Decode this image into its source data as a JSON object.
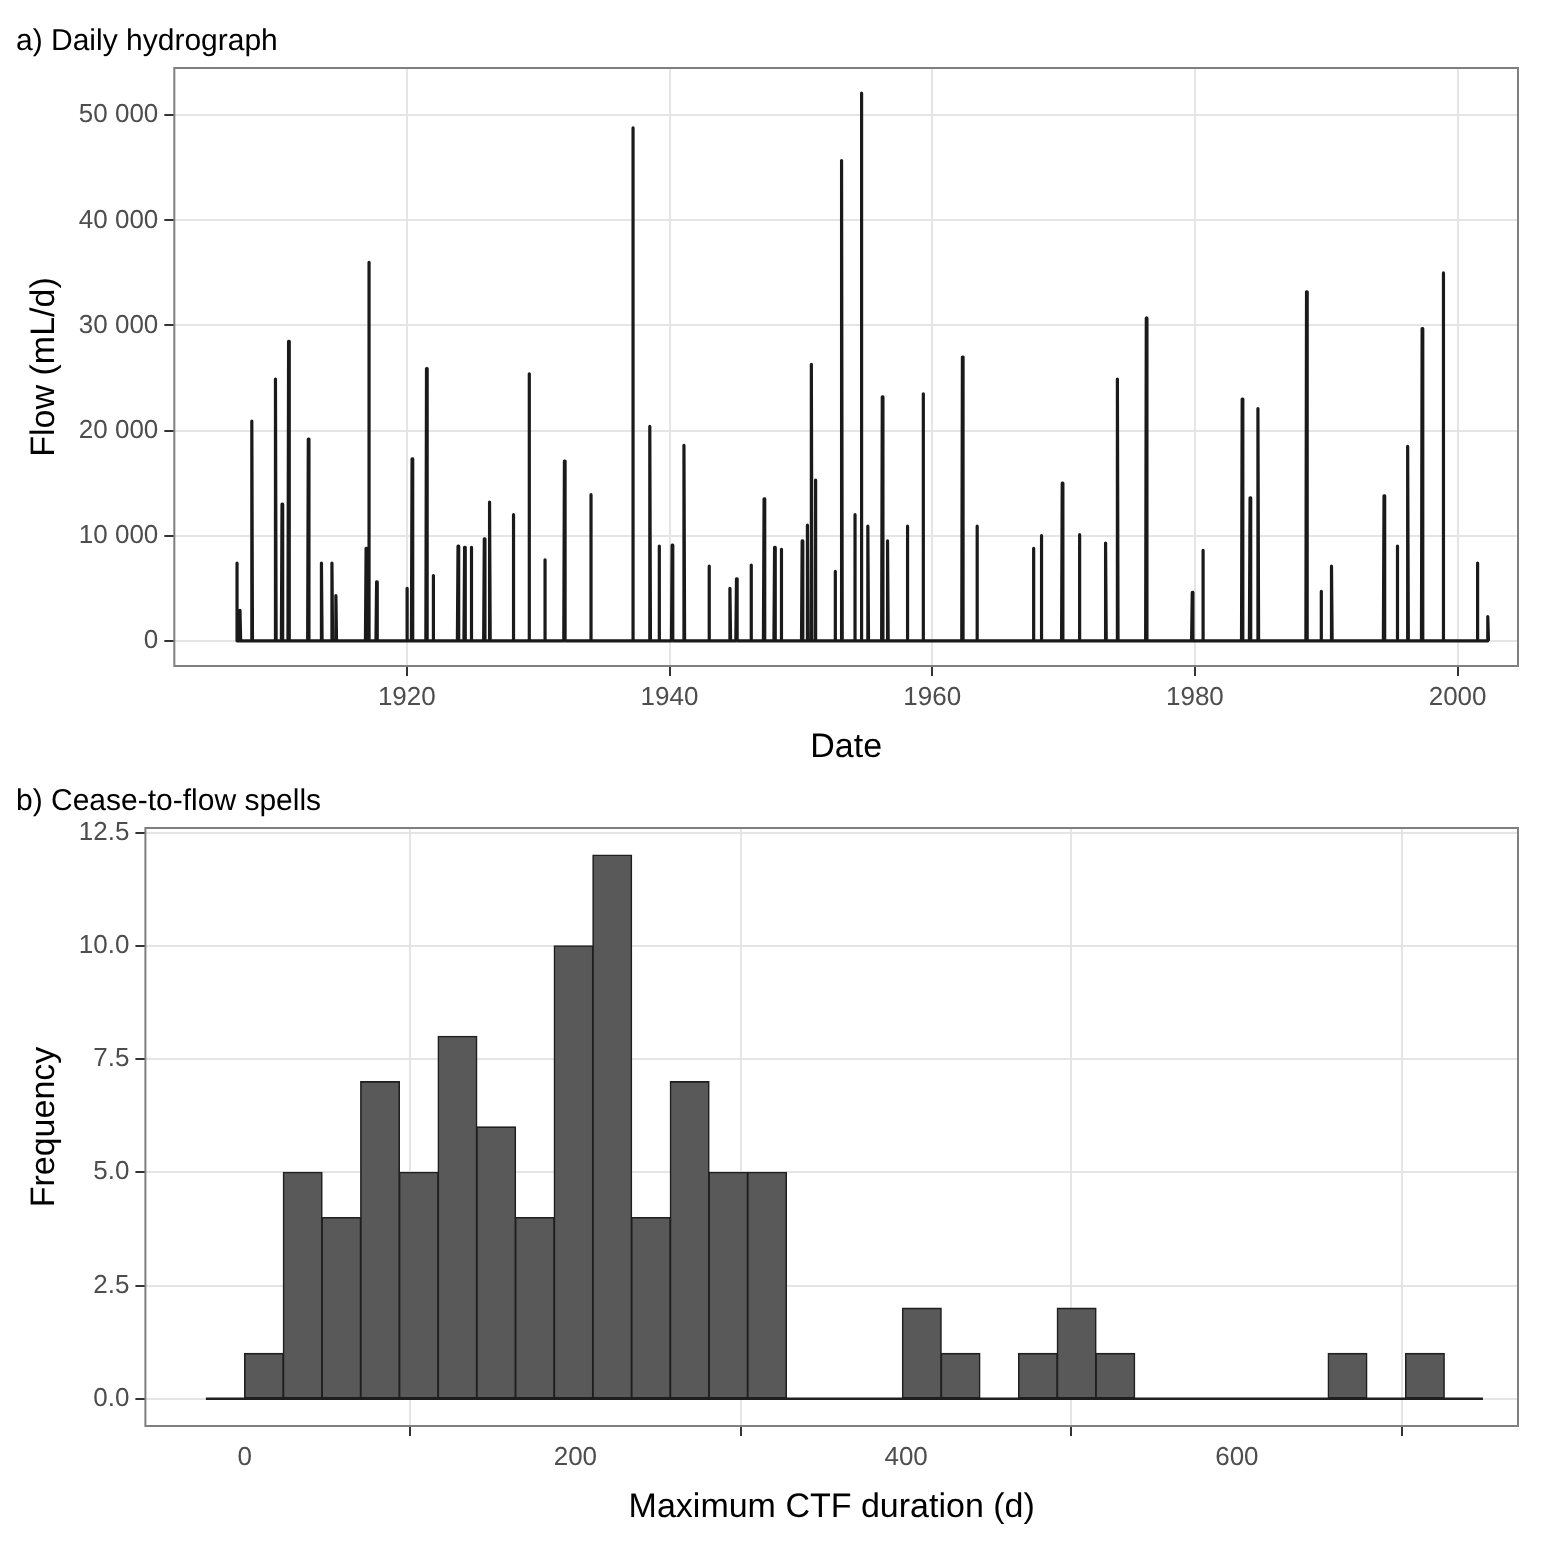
{
  "chart_data": [
    {
      "type": "line",
      "title": "a) Daily hydrograph",
      "xlabel": "Date",
      "ylabel": "Flow (mL/d)",
      "color": "#1a1a1a",
      "grid": true,
      "xlim": [
        1902.3,
        2004.6
      ],
      "xticks": [
        1920,
        1940,
        1960,
        1980,
        2000
      ],
      "ylim": [
        -2400,
        54500
      ],
      "yticks": [
        0,
        {
          "value": 10000,
          "label": "10 000"
        },
        {
          "value": 20000,
          "label": "20 000"
        },
        {
          "value": 30000,
          "label": "30 000"
        },
        {
          "value": 40000,
          "label": "40 000"
        },
        {
          "value": 50000,
          "label": "50 000"
        }
      ],
      "x": [
        1907.0,
        1907.05,
        1907.1,
        1907.25,
        1907.3,
        1907.35,
        1908.15,
        1908.2,
        1908.25,
        1909.95,
        1910.0,
        1910.05,
        1910.45,
        1910.5,
        1910.55,
        1910.95,
        1911.0,
        1911.05,
        1912.45,
        1912.5,
        1912.55,
        1913.45,
        1913.5,
        1913.55,
        1914.25,
        1914.3,
        1914.35,
        1914.55,
        1914.6,
        1914.65,
        1916.85,
        1916.9,
        1916.95,
        1917.05,
        1917.1,
        1917.15,
        1917.65,
        1917.7,
        1917.75,
        1919.95,
        1920.0,
        1920.05,
        1920.35,
        1920.4,
        1920.45,
        1921.45,
        1921.5,
        1921.55,
        1921.95,
        1922.0,
        1922.05,
        1923.85,
        1923.9,
        1923.95,
        1924.35,
        1924.4,
        1924.45,
        1924.85,
        1924.9,
        1924.95,
        1925.85,
        1925.9,
        1925.95,
        1926.25,
        1926.3,
        1926.35,
        1928.05,
        1928.1,
        1928.15,
        1929.25,
        1929.3,
        1929.35,
        1930.45,
        1930.5,
        1930.55,
        1931.95,
        1932.0,
        1932.05,
        1933.95,
        1934.0,
        1934.05,
        1937.15,
        1937.2,
        1937.25,
        1938.45,
        1938.5,
        1938.55,
        1939.15,
        1939.2,
        1939.25,
        1940.15,
        1940.2,
        1940.25,
        1941.05,
        1941.1,
        1941.15,
        1942.95,
        1943.0,
        1943.05,
        1944.55,
        1944.6,
        1944.65,
        1945.05,
        1945.1,
        1945.15,
        1946.15,
        1946.2,
        1946.25,
        1947.15,
        1947.2,
        1947.25,
        1947.95,
        1948.0,
        1948.05,
        1948.45,
        1948.5,
        1948.55,
        1950.05,
        1950.1,
        1950.15,
        1950.45,
        1950.5,
        1950.55,
        1950.75,
        1950.8,
        1950.85,
        1951.05,
        1951.1,
        1951.15,
        1952.55,
        1952.6,
        1952.65,
        1953.05,
        1953.1,
        1953.15,
        1954.05,
        1954.1,
        1954.15,
        1954.55,
        1954.6,
        1954.65,
        1955.05,
        1955.1,
        1955.15,
        1956.15,
        1956.2,
        1956.25,
        1956.55,
        1956.6,
        1956.65,
        1958.05,
        1958.1,
        1958.15,
        1959.25,
        1959.3,
        1959.35,
        1962.25,
        1962.3,
        1962.35,
        1963.35,
        1963.4,
        1963.45,
        1967.65,
        1967.7,
        1967.75,
        1968.25,
        1968.3,
        1968.35,
        1969.85,
        1969.9,
        1969.95,
        1971.15,
        1971.2,
        1971.25,
        1973.15,
        1973.2,
        1973.25,
        1974.05,
        1974.1,
        1974.15,
        1976.25,
        1976.3,
        1976.35,
        1979.75,
        1979.8,
        1979.85,
        1980.55,
        1980.6,
        1980.65,
        1983.55,
        1983.6,
        1983.65,
        1984.15,
        1984.2,
        1984.25,
        1984.75,
        1984.8,
        1984.85,
        1988.45,
        1988.5,
        1988.55,
        1989.55,
        1989.6,
        1989.65,
        1990.35,
        1990.4,
        1990.45,
        1994.35,
        1994.4,
        1994.45,
        1995.35,
        1995.4,
        1995.45,
        1996.15,
        1996.2,
        1996.25,
        1997.25,
        1997.3,
        1997.35,
        1998.85,
        1998.9,
        1998.95,
        2001.45,
        2001.5,
        2001.55,
        2002.25,
        2002.3,
        2002.35
      ],
      "values": [
        0,
        7400,
        0,
        0,
        2900,
        0,
        0,
        20900,
        0,
        0,
        24900,
        0,
        0,
        13000,
        0,
        0,
        28500,
        0,
        0,
        19200,
        0,
        0,
        7400,
        0,
        0,
        7400,
        0,
        0,
        4300,
        0,
        0,
        8800,
        0,
        0,
        36000,
        0,
        0,
        5600,
        0,
        0,
        5000,
        0,
        0,
        17300,
        0,
        0,
        25900,
        0,
        0,
        6200,
        0,
        0,
        9000,
        0,
        0,
        8900,
        0,
        0,
        8900,
        0,
        0,
        9700,
        0,
        0,
        13200,
        0,
        0,
        12000,
        0,
        0,
        25400,
        0,
        0,
        7700,
        0,
        0,
        17100,
        0,
        0,
        13900,
        0,
        0,
        48800,
        0,
        0,
        20400,
        0,
        0,
        9000,
        0,
        0,
        9100,
        0,
        0,
        18600,
        0,
        0,
        7100,
        0,
        0,
        5000,
        0,
        0,
        5900,
        0,
        0,
        7200,
        0,
        0,
        13500,
        0,
        0,
        8900,
        0,
        0,
        8700,
        0,
        0,
        9500,
        0,
        0,
        11000,
        0,
        0,
        26300,
        0,
        0,
        15300,
        0,
        0,
        6600,
        0,
        0,
        45700,
        0,
        0,
        12000,
        0,
        0,
        52100,
        0,
        0,
        10900,
        0,
        0,
        23200,
        0,
        0,
        9500,
        0,
        0,
        10900,
        0,
        0,
        23500,
        0,
        0,
        27000,
        0,
        0,
        10900,
        0,
        0,
        8800,
        0,
        0,
        10000,
        0,
        0,
        15000,
        0,
        0,
        10100,
        0,
        0,
        9300,
        0,
        0,
        24900,
        0,
        0,
        30700,
        0,
        0,
        4600,
        0,
        0,
        8600,
        0,
        0,
        23000,
        0,
        0,
        13600,
        0,
        0,
        22100,
        0,
        0,
        33200,
        0,
        0,
        4700,
        0,
        0,
        7100,
        0,
        0,
        13800,
        0,
        0,
        9000,
        0,
        0,
        18500,
        0,
        0,
        29700,
        0,
        0,
        35000,
        0,
        0,
        7400,
        0,
        0,
        2300,
        0
      ]
    },
    {
      "type": "histogram",
      "title": "b) Cease-to-flow spells",
      "xlabel": "Maximum CTF duration (d)",
      "ylabel": "Frequency",
      "color": "#595959",
      "grid": true,
      "xlim": [
        -60,
        770
      ],
      "xticks": [
        0,
        200,
        400,
        600
      ],
      "ylim": [
        -0.6,
        12.6
      ],
      "yticks": [
        {
          "value": 0,
          "label": "0.0"
        },
        2.5,
        {
          "value": 5,
          "label": "5.0"
        },
        7.5,
        {
          "value": 10,
          "label": "10.0"
        },
        12.5
      ],
      "bins": [
        -23.4,
        0,
        23.4,
        46.8,
        70.2,
        93.6,
        117,
        140.4,
        163.8,
        187.2,
        210.6,
        234,
        257.4,
        280.8,
        304.2,
        327.6,
        351,
        374.4,
        397.8,
        421.2,
        444.6,
        468,
        491.4,
        514.8,
        538.2,
        561.6,
        585,
        608.4,
        631.8,
        655.2,
        678.6,
        702,
        725.4,
        748.8
      ],
      "values": [
        0,
        1,
        5,
        4,
        7,
        5,
        8,
        6,
        4,
        10,
        12,
        4,
        7,
        5,
        5,
        0,
        0,
        0,
        2,
        1,
        0,
        1,
        2,
        1,
        0,
        0,
        0,
        0,
        0,
        1,
        0,
        1,
        0
      ]
    }
  ]
}
